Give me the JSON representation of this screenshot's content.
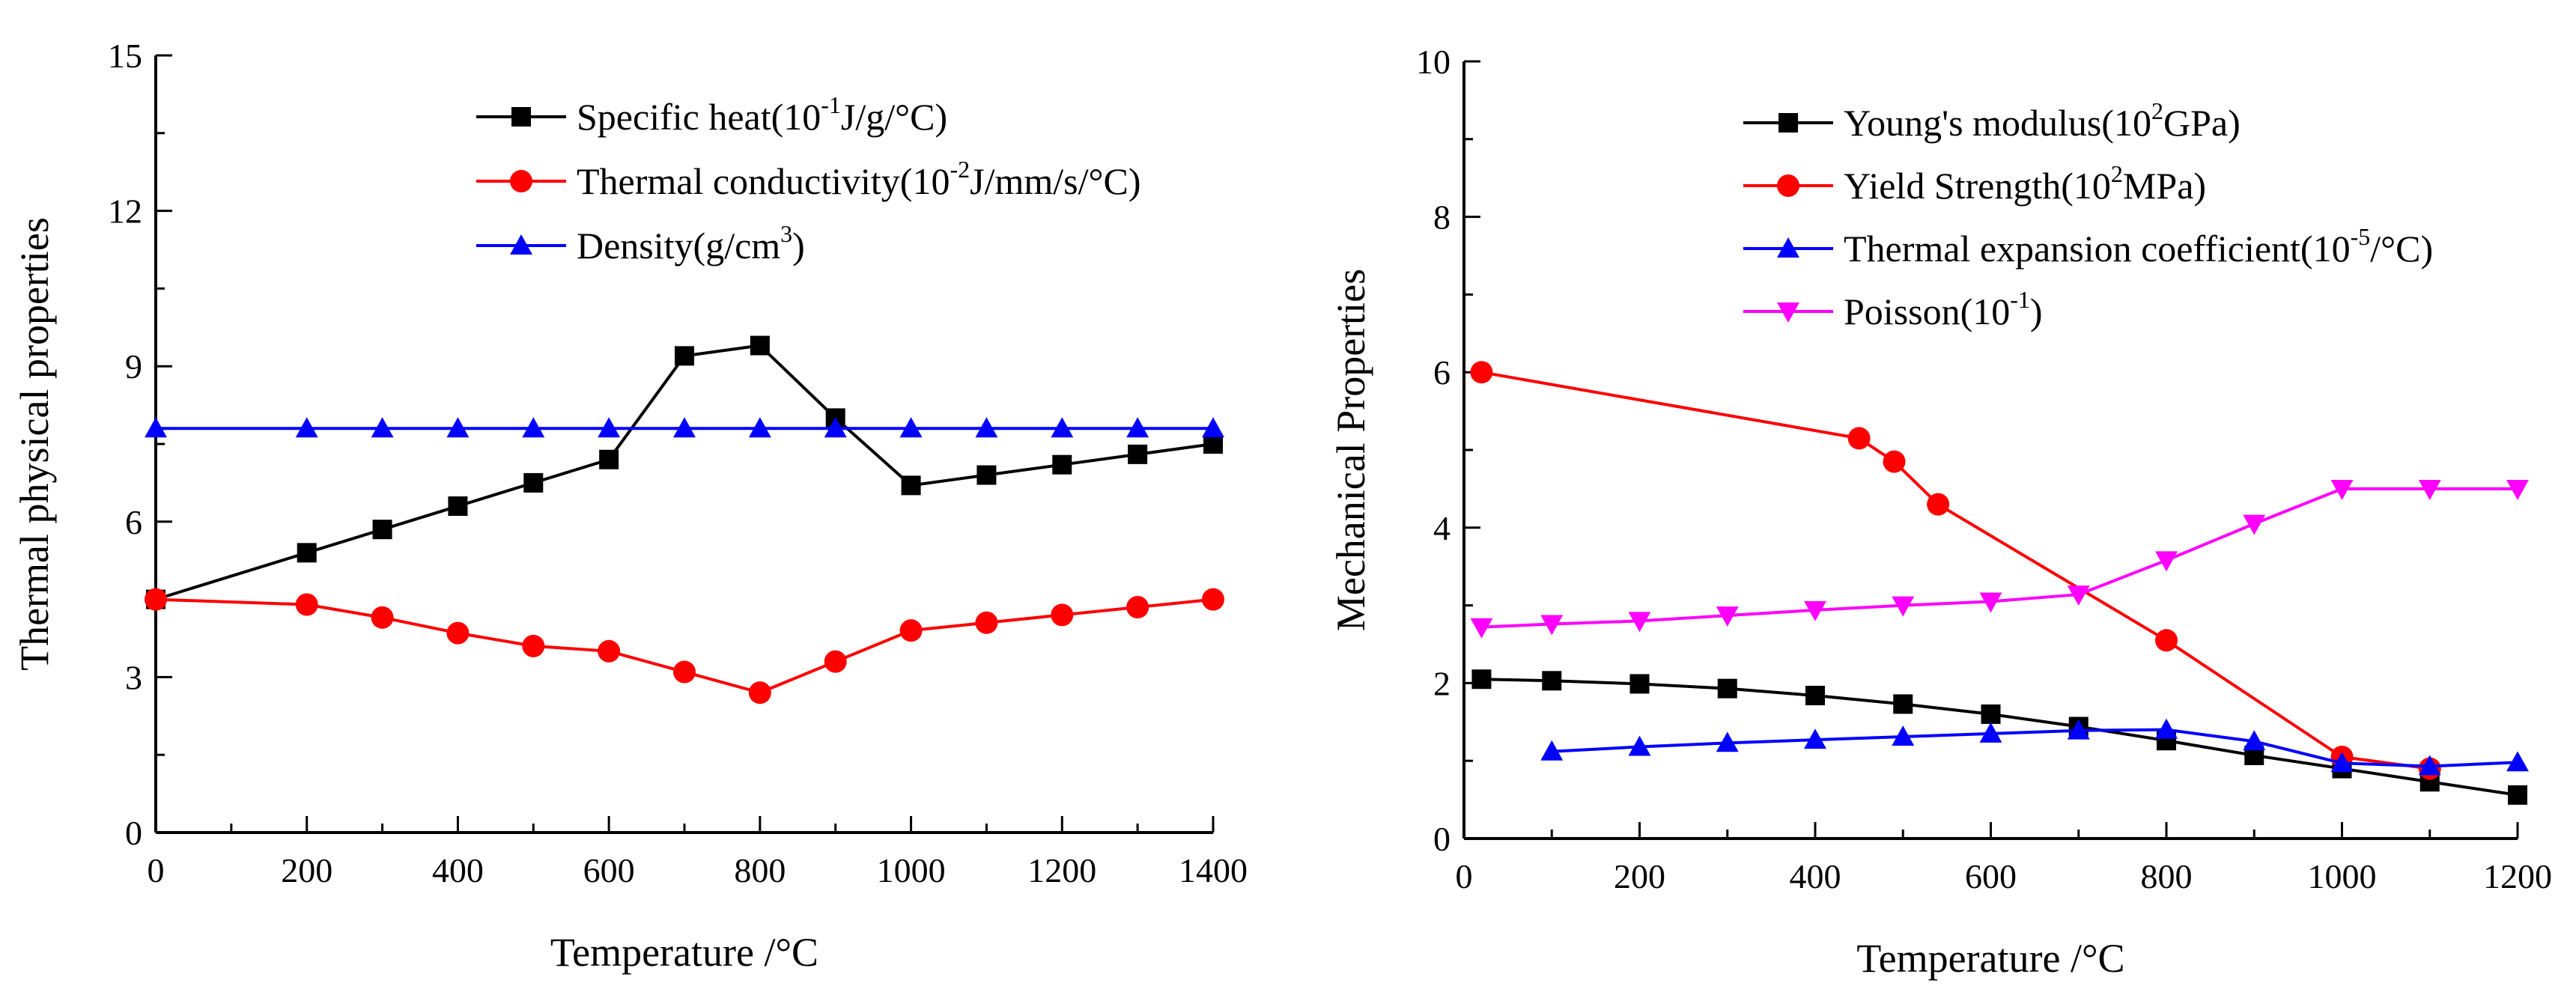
{
  "chart_data": [
    {
      "type": "line",
      "xlabel": "Temperature /°C",
      "ylabel": "Thermal physical properties",
      "xlim": [
        0,
        1400
      ],
      "ylim": [
        0,
        15
      ],
      "xticks": [
        0,
        200,
        400,
        600,
        800,
        1000,
        1200,
        1400
      ],
      "yticks": [
        0,
        3,
        6,
        9,
        12,
        15
      ],
      "legend_position": "top-right",
      "series": [
        {
          "name": "Specific heat",
          "legend": [
            "Specific heat(10",
            "-1",
            "J/g/°C)"
          ],
          "color": "#000000",
          "marker": "square",
          "x": [
            0,
            200,
            300,
            400,
            500,
            600,
            700,
            800,
            900,
            1000,
            1100,
            1200,
            1300,
            1400
          ],
          "y": [
            4.5,
            5.4,
            5.85,
            6.3,
            6.75,
            7.2,
            9.2,
            9.4,
            8.0,
            6.7,
            6.9,
            7.1,
            7.3,
            7.5
          ]
        },
        {
          "name": "Thermal conductivity",
          "legend": [
            "Thermal conductivity(10",
            "-2",
            "J/mm/s/°C)"
          ],
          "color": "#ff0000",
          "marker": "circle",
          "x": [
            0,
            200,
            300,
            400,
            500,
            600,
            700,
            800,
            900,
            1000,
            1100,
            1200,
            1300,
            1400
          ],
          "y": [
            4.5,
            4.4,
            4.15,
            3.85,
            3.6,
            3.5,
            3.1,
            2.7,
            3.3,
            3.9,
            4.05,
            4.2,
            4.35,
            4.5
          ]
        },
        {
          "name": "Density",
          "legend": [
            "Density(g/cm",
            "3",
            ")"
          ],
          "color": "#0000ff",
          "marker": "triangle-up",
          "x": [
            0,
            200,
            300,
            400,
            500,
            600,
            700,
            800,
            900,
            1000,
            1100,
            1200,
            1300,
            1400
          ],
          "y": [
            7.8,
            7.8,
            7.8,
            7.8,
            7.8,
            7.8,
            7.8,
            7.8,
            7.8,
            7.8,
            7.8,
            7.8,
            7.8,
            7.8
          ]
        }
      ]
    },
    {
      "type": "line",
      "xlabel": "Temperature /°C",
      "ylabel": "Mechanical Properties",
      "xlim": [
        0,
        1200
      ],
      "ylim": [
        0,
        10
      ],
      "xticks": [
        0,
        200,
        400,
        600,
        800,
        1000,
        1200
      ],
      "yticks": [
        0,
        2,
        4,
        6,
        8,
        10
      ],
      "legend_position": "top-right",
      "series": [
        {
          "name": "Young's modulus",
          "legend": [
            "Young's modulus(10",
            "2",
            "GPa)"
          ],
          "color": "#000000",
          "marker": "square",
          "x": [
            20,
            100,
            200,
            300,
            400,
            500,
            600,
            700,
            800,
            900,
            1000,
            1100,
            1200
          ],
          "y": [
            2.05,
            2.03,
            1.99,
            1.93,
            1.84,
            1.73,
            1.6,
            1.44,
            1.26,
            1.07,
            0.9,
            0.73,
            0.56
          ]
        },
        {
          "name": "Yield Strength",
          "legend": [
            "Yield Strength(10",
            "2",
            "MPa)"
          ],
          "color": "#ff0000",
          "marker": "circle",
          "x": [
            20,
            450,
            490,
            540,
            800,
            1000,
            1100
          ],
          "y": [
            6.0,
            5.15,
            4.85,
            4.3,
            2.55,
            1.05,
            0.9
          ]
        },
        {
          "name": "Thermal expansion coefficient",
          "legend": [
            "Thermal expansion coefficient(10",
            "-5",
            "/°C)"
          ],
          "color": "#0000ff",
          "marker": "triangle-up",
          "x": [
            100,
            200,
            300,
            400,
            500,
            600,
            700,
            800,
            900,
            1000,
            1100,
            1200
          ],
          "y": [
            1.12,
            1.18,
            1.23,
            1.27,
            1.31,
            1.35,
            1.39,
            1.4,
            1.25,
            0.97,
            0.93,
            0.98
          ]
        },
        {
          "name": "Poisson",
          "legend": [
            "Poisson(10",
            "-1",
            ")"
          ],
          "color": "#ff00ff",
          "marker": "triangle-down",
          "x": [
            20,
            100,
            200,
            300,
            400,
            500,
            600,
            700,
            800,
            900,
            1000,
            1100,
            1200
          ],
          "y": [
            2.72,
            2.76,
            2.8,
            2.87,
            2.94,
            3.0,
            3.05,
            3.14,
            3.58,
            4.05,
            4.5,
            4.5,
            4.5
          ]
        }
      ]
    }
  ]
}
